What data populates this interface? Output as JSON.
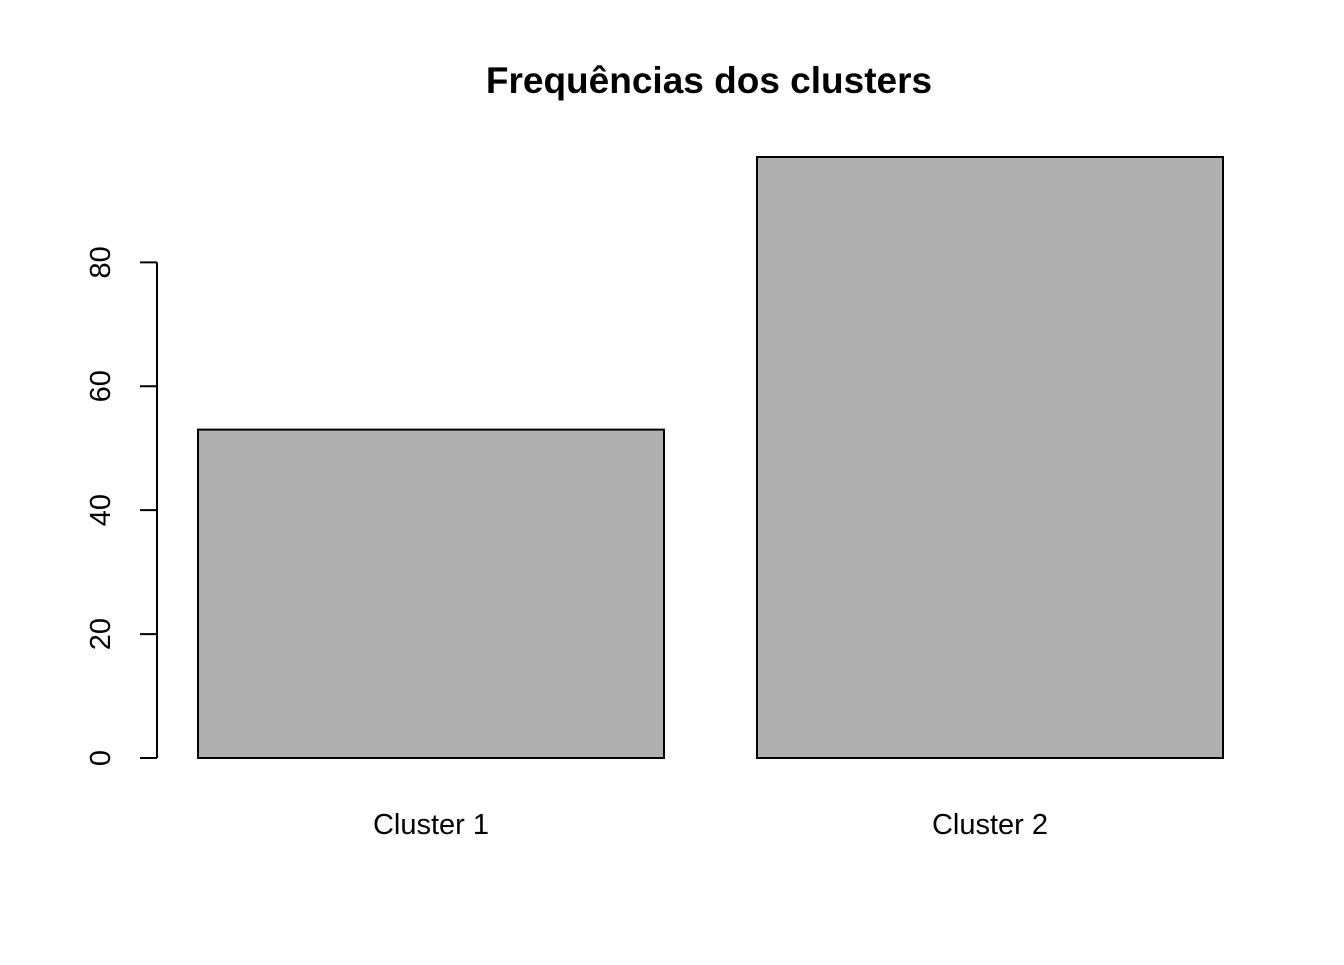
{
  "chart_data": {
    "type": "bar",
    "title": "Frequências dos clusters",
    "xlabel": "",
    "ylabel": "",
    "categories": [
      "Cluster 1",
      "Cluster 2"
    ],
    "values": [
      53,
      97
    ],
    "ylim": [
      0,
      97
    ],
    "yticks": [
      0,
      20,
      40,
      60,
      80
    ],
    "ytick_labels": [
      "0",
      "20",
      "40",
      "60",
      "80"
    ],
    "grid": false,
    "legend": "none",
    "colors": {
      "bar_fill": "#b0b0b0",
      "bar_stroke": "#000000",
      "axis": "#000000",
      "background": "#ffffff"
    }
  }
}
